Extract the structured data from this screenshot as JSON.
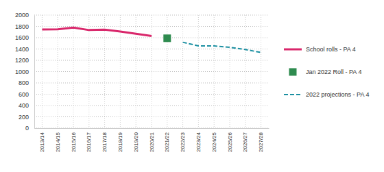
{
  "chart_data": {
    "type": "line",
    "categories": [
      "2013/14",
      "2014/15",
      "2015/16",
      "2016/17",
      "2017/18",
      "2018/19",
      "2019/20",
      "2020/21",
      "2021/22",
      "2022/23",
      "2023/24",
      "2024/25",
      "2025/26",
      "2026/27",
      "2027/28"
    ],
    "series": [
      {
        "name": "School rolls - PA 4",
        "type": "line",
        "line_style": "solid",
        "color": "#d9276b",
        "values": [
          1745,
          1748,
          1780,
          1735,
          1742,
          1710,
          1670,
          1630,
          null,
          null,
          null,
          null,
          null,
          null,
          null
        ]
      },
      {
        "name": "Jan 2022 Roll - PA 4",
        "type": "scatter",
        "marker": "square",
        "color": "#2e8b4f",
        "values": [
          null,
          null,
          null,
          null,
          null,
          null,
          null,
          null,
          1590,
          null,
          null,
          null,
          null,
          null,
          null
        ]
      },
      {
        "name": "2022 projections - PA 4",
        "type": "line",
        "line_style": "dashed",
        "color": "#1b8fa1",
        "values": [
          null,
          null,
          null,
          null,
          null,
          null,
          null,
          null,
          null,
          1520,
          1455,
          1455,
          1430,
          1390,
          1340
        ]
      }
    ],
    "ylim": [
      0,
      2000
    ],
    "yticks": [
      0,
      200,
      400,
      600,
      800,
      1000,
      1200,
      1400,
      1600,
      1800,
      2000
    ],
    "grid": true,
    "legend": "right"
  }
}
